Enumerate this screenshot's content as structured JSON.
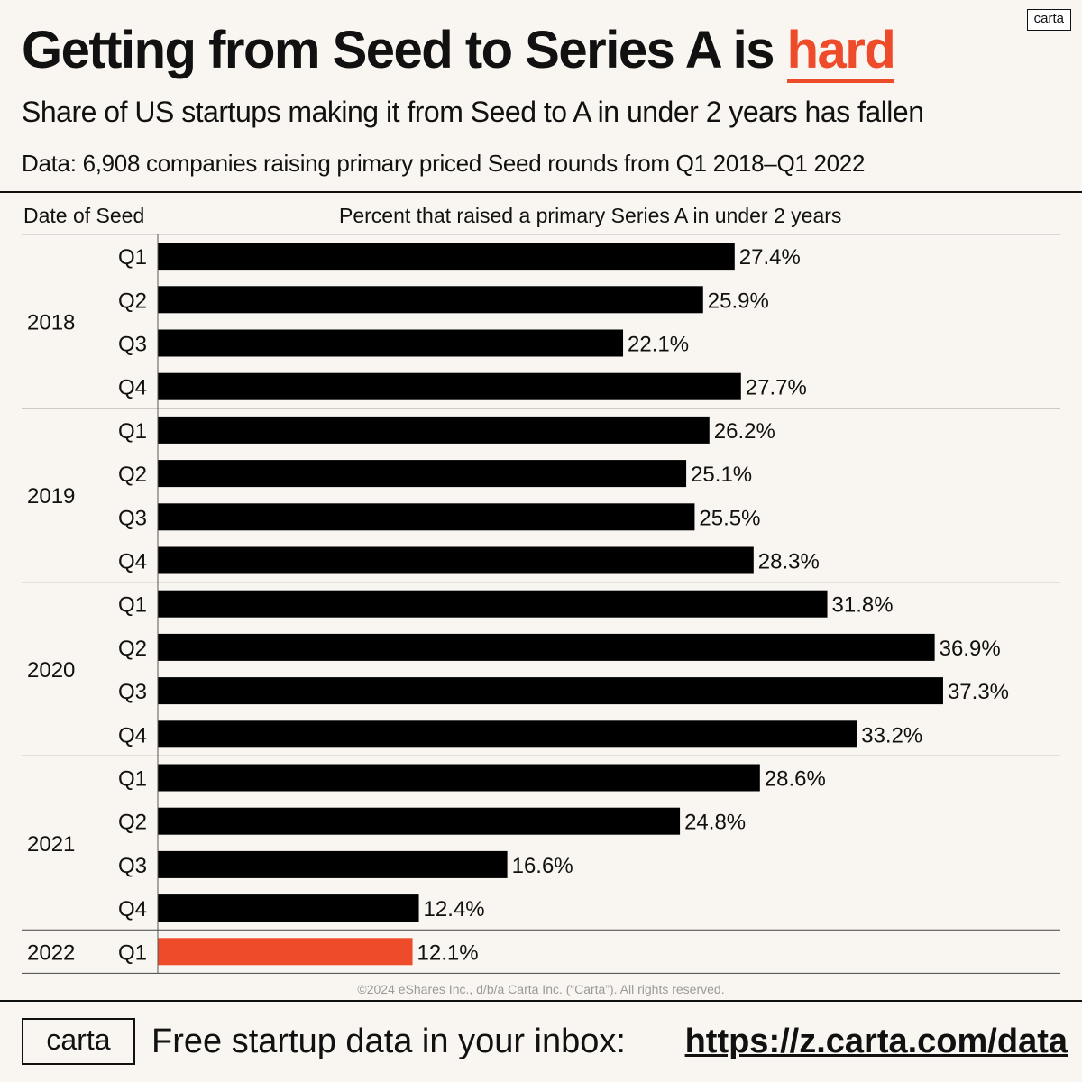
{
  "brand": {
    "logo_label": "carta"
  },
  "header": {
    "title_main": "Getting from Seed to Series A is ",
    "title_highlight": "hard",
    "subtitle": "Share of US startups making it from Seed to A in under 2 years has fallen",
    "data_note": "Data: 6,908 companies raising primary priced Seed rounds from Q1 2018–Q1 2022"
  },
  "colors": {
    "bar": "#000000",
    "highlight": "#ee4b2b",
    "background": "#f9f6f1"
  },
  "chart_data": {
    "type": "bar",
    "orientation": "horizontal",
    "title": "Getting from Seed to Series A is hard",
    "column_headers": {
      "date": "Date of Seed",
      "value": "Percent that raised a primary Series A in under 2 years"
    },
    "unit": "%",
    "xlim": [
      0,
      40
    ],
    "groups": [
      {
        "year": "2018",
        "quarters": [
          "Q1",
          "Q2",
          "Q3",
          "Q4"
        ],
        "values": [
          27.4,
          25.9,
          22.1,
          27.7
        ],
        "labels": [
          "27.4%",
          "25.9%",
          "22.1%",
          "27.7%"
        ]
      },
      {
        "year": "2019",
        "quarters": [
          "Q1",
          "Q2",
          "Q3",
          "Q4"
        ],
        "values": [
          26.2,
          25.1,
          25.5,
          28.3
        ],
        "labels": [
          "26.2%",
          "25.1%",
          "25.5%",
          "28.3%"
        ]
      },
      {
        "year": "2020",
        "quarters": [
          "Q1",
          "Q2",
          "Q3",
          "Q4"
        ],
        "values": [
          31.8,
          36.9,
          37.3,
          33.2
        ],
        "labels": [
          "31.8%",
          "36.9%",
          "37.3%",
          "33.2%"
        ]
      },
      {
        "year": "2021",
        "quarters": [
          "Q1",
          "Q2",
          "Q3",
          "Q4"
        ],
        "values": [
          28.6,
          24.8,
          16.6,
          12.4
        ],
        "labels": [
          "28.6%",
          "24.8%",
          "16.6%",
          "12.4%"
        ]
      },
      {
        "year": "2022",
        "quarters": [
          "Q1"
        ],
        "values": [
          12.1
        ],
        "labels": [
          "12.1%"
        ],
        "highlight": true
      }
    ]
  },
  "footer": {
    "copyright": "©2024 eShares Inc., d/b/a Carta Inc. (“Carta”). All rights reserved.",
    "logo_label": "carta",
    "cta_text": "Free startup data in your inbox:",
    "link_text": "https://z.carta.com/data"
  }
}
